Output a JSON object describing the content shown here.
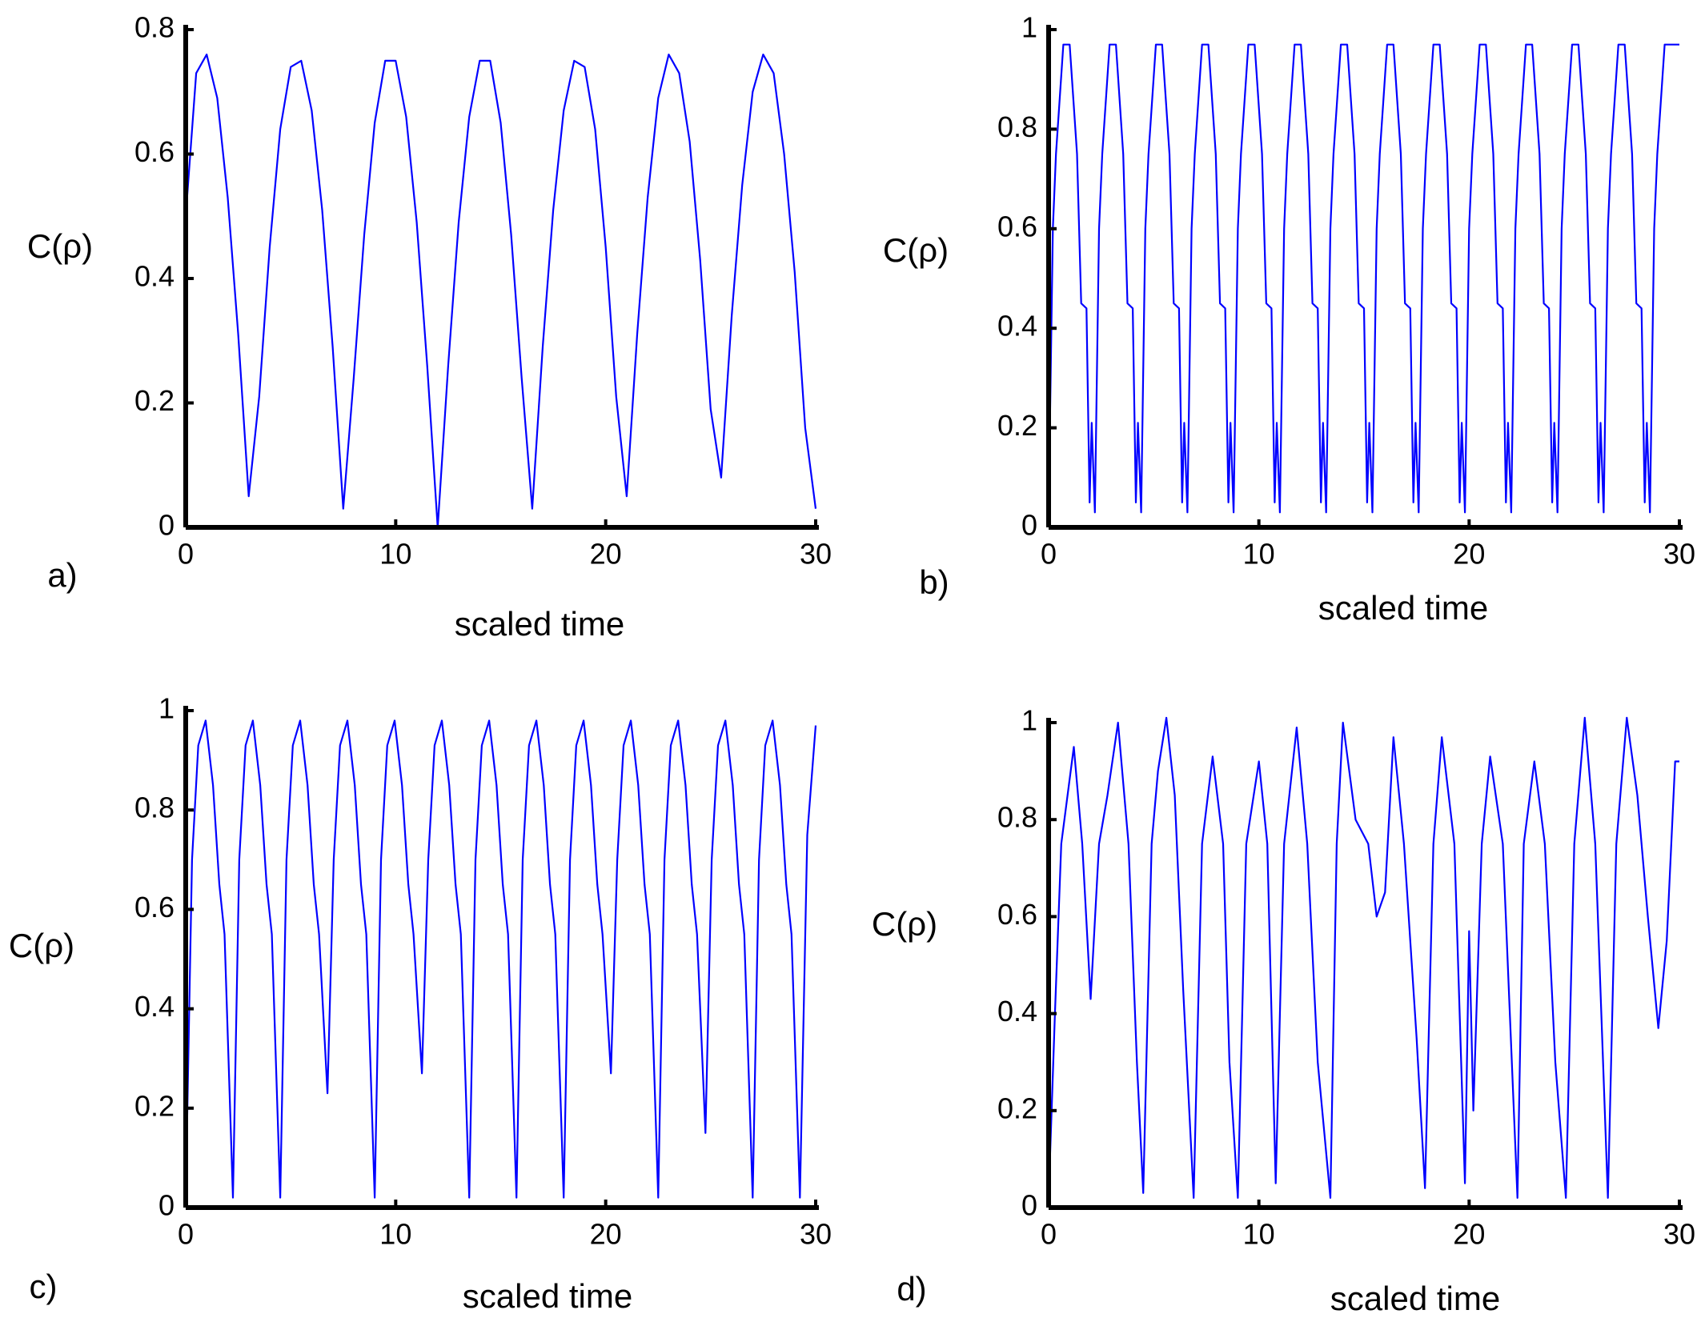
{
  "chart_data": [
    {
      "type": "line",
      "panel_label": "a)",
      "xlabel": "scaled time",
      "ylabel": "C(ρ)",
      "color": "#0000ff",
      "xlim": [
        0,
        30
      ],
      "xticks": [
        0,
        10,
        20,
        30
      ],
      "ylim": [
        0,
        0.8
      ],
      "yticks": [
        0,
        0.2,
        0.4,
        0.6,
        0.8
      ],
      "x": [
        0,
        0.5,
        1,
        1.5,
        2,
        2.5,
        3,
        3.5,
        4,
        4.5,
        5,
        5.5,
        6,
        6.5,
        7,
        7.5,
        8,
        8.5,
        9,
        9.5,
        10,
        10.5,
        11,
        11.5,
        12,
        12.5,
        13,
        13.5,
        14,
        14.5,
        15,
        15.5,
        16,
        16.5,
        17,
        17.5,
        18,
        18.5,
        19,
        19.5,
        20,
        20.5,
        21,
        21.5,
        22,
        22.5,
        23,
        23.5,
        24,
        24.5,
        25,
        25.5,
        26,
        26.5,
        27,
        27.5,
        28,
        28.5,
        29,
        29.5,
        30
      ],
      "values": [
        0.5,
        0.73,
        0.76,
        0.69,
        0.53,
        0.31,
        0.05,
        0.21,
        0.45,
        0.64,
        0.74,
        0.75,
        0.67,
        0.51,
        0.29,
        0.03,
        0.24,
        0.47,
        0.65,
        0.75,
        0.75,
        0.66,
        0.49,
        0.26,
        0,
        0.26,
        0.49,
        0.66,
        0.75,
        0.75,
        0.65,
        0.47,
        0.24,
        0.03,
        0.29,
        0.51,
        0.67,
        0.75,
        0.74,
        0.64,
        0.45,
        0.21,
        0.05,
        0.31,
        0.53,
        0.69,
        0.76,
        0.73,
        0.62,
        0.43,
        0.19,
        0.08,
        0.34,
        0.55,
        0.7,
        0.76,
        0.73,
        0.6,
        0.41,
        0.16,
        0.03
      ]
    },
    {
      "type": "line",
      "panel_label": "b)",
      "xlabel": "scaled time",
      "ylabel": "C(ρ)",
      "color": "#0000ff",
      "xlim": [
        0,
        30
      ],
      "xticks": [
        0,
        10,
        20,
        30
      ],
      "ylim": [
        0,
        1
      ],
      "yticks": [
        0,
        0.2,
        0.4,
        0.6,
        0.8,
        1
      ],
      "x": [
        0,
        0.2,
        0.35,
        0.7,
        1.0,
        1.35,
        1.55,
        1.8,
        1.95,
        2.05,
        2.2,
        2.4,
        2.55,
        2.9,
        3.2,
        3.55,
        3.75,
        4.0,
        4.15,
        4.25,
        4.4,
        4.6,
        4.75,
        5.1,
        5.4,
        5.75,
        5.95,
        6.2,
        6.35,
        6.45,
        6.6,
        6.8,
        6.95,
        7.3,
        7.6,
        7.95,
        8.15,
        8.4,
        8.55,
        8.65,
        8.8,
        9.0,
        9.15,
        9.5,
        9.8,
        10.15,
        10.35,
        10.6,
        10.75,
        10.85,
        11.0,
        11.2,
        11.35,
        11.7,
        12.0,
        12.35,
        12.55,
        12.8,
        12.95,
        13.05,
        13.2,
        13.4,
        13.55,
        13.9,
        14.2,
        14.55,
        14.75,
        15.0,
        15.15,
        15.25,
        15.4,
        15.6,
        15.75,
        16.1,
        16.4,
        16.75,
        16.95,
        17.2,
        17.35,
        17.45,
        17.6,
        17.8,
        17.95,
        18.3,
        18.6,
        18.95,
        19.15,
        19.4,
        19.55,
        19.65,
        19.8,
        20.0,
        20.15,
        20.5,
        20.8,
        21.15,
        21.35,
        21.6,
        21.75,
        21.85,
        22.0,
        22.2,
        22.35,
        22.7,
        23.0,
        23.35,
        23.55,
        23.8,
        23.95,
        24.05,
        24.2,
        24.4,
        24.55,
        24.9,
        25.2,
        25.55,
        25.75,
        26.0,
        26.15,
        26.25,
        26.4,
        26.6,
        26.75,
        27.1,
        27.4,
        27.75,
        27.95,
        28.2,
        28.35,
        28.45,
        28.6,
        28.8,
        28.95,
        29.3,
        30.0
      ],
      "values": [
        0.03,
        0.6,
        0.75,
        0.97,
        0.97,
        0.75,
        0.45,
        0.44,
        0.05,
        0.21,
        0.03,
        0.6,
        0.75,
        0.97,
        0.97,
        0.75,
        0.45,
        0.44,
        0.05,
        0.21,
        0.03,
        0.6,
        0.75,
        0.97,
        0.97,
        0.75,
        0.45,
        0.44,
        0.05,
        0.21,
        0.03,
        0.6,
        0.75,
        0.97,
        0.97,
        0.75,
        0.45,
        0.44,
        0.05,
        0.21,
        0.03,
        0.6,
        0.75,
        0.97,
        0.97,
        0.75,
        0.45,
        0.44,
        0.05,
        0.21,
        0.03,
        0.6,
        0.75,
        0.97,
        0.97,
        0.75,
        0.45,
        0.44,
        0.05,
        0.21,
        0.03,
        0.6,
        0.75,
        0.97,
        0.97,
        0.75,
        0.45,
        0.44,
        0.05,
        0.21,
        0.03,
        0.6,
        0.75,
        0.97,
        0.97,
        0.75,
        0.45,
        0.44,
        0.05,
        0.21,
        0.03,
        0.6,
        0.75,
        0.97,
        0.97,
        0.75,
        0.45,
        0.44,
        0.05,
        0.21,
        0.03,
        0.6,
        0.75,
        0.97,
        0.97,
        0.75,
        0.45,
        0.44,
        0.05,
        0.21,
        0.03,
        0.6,
        0.75,
        0.97,
        0.97,
        0.75,
        0.45,
        0.44,
        0.05,
        0.21,
        0.03,
        0.6,
        0.75,
        0.97,
        0.97,
        0.75,
        0.45,
        0.44,
        0.05,
        0.21,
        0.03,
        0.6,
        0.75,
        0.97,
        0.97,
        0.75,
        0.45,
        0.44,
        0.05,
        0.21,
        0.03,
        0.6,
        0.75,
        0.97,
        0.97
      ]
    },
    {
      "type": "line",
      "panel_label": "c)",
      "xlabel": "scaled time",
      "ylabel": "C(ρ)",
      "color": "#0000ff",
      "xlim": [
        0,
        30
      ],
      "xticks": [
        0,
        10,
        20,
        30
      ],
      "ylim": [
        0,
        1
      ],
      "yticks": [
        0,
        0.2,
        0.4,
        0.6,
        0.8,
        1
      ],
      "x": [
        0,
        0.3,
        0.6,
        0.95,
        1.3,
        1.6,
        1.85,
        2.25,
        2.55,
        2.85,
        3.2,
        3.55,
        3.85,
        4.1,
        4.5,
        4.8,
        5.1,
        5.45,
        5.8,
        6.1,
        6.35,
        6.75,
        7.05,
        7.35,
        7.7,
        8.05,
        8.35,
        8.6,
        9,
        9.3,
        9.6,
        9.95,
        10.3,
        10.6,
        10.85,
        11.25,
        11.55,
        11.85,
        12.2,
        12.55,
        12.85,
        13.1,
        13.5,
        13.8,
        14.1,
        14.45,
        14.8,
        15.1,
        15.35,
        15.75,
        16.05,
        16.35,
        16.7,
        17.05,
        17.35,
        17.6,
        18,
        18.3,
        18.6,
        18.95,
        19.3,
        19.6,
        19.85,
        20.25,
        20.55,
        20.85,
        21.2,
        21.55,
        21.85,
        22.1,
        22.5,
        22.8,
        23.1,
        23.45,
        23.8,
        24.1,
        24.35,
        24.75,
        25.05,
        25.35,
        25.7,
        26.05,
        26.35,
        26.6,
        27,
        27.3,
        27.6,
        27.95,
        28.3,
        28.6,
        28.85,
        29.25,
        29.6,
        30
      ],
      "values": [
        0.02,
        0.7,
        0.93,
        0.98,
        0.85,
        0.65,
        0.55,
        0.02,
        0.7,
        0.93,
        0.98,
        0.85,
        0.65,
        0.55,
        0.02,
        0.7,
        0.93,
        0.98,
        0.85,
        0.65,
        0.55,
        0.23,
        0.7,
        0.93,
        0.98,
        0.85,
        0.65,
        0.55,
        0.02,
        0.7,
        0.93,
        0.98,
        0.85,
        0.65,
        0.55,
        0.27,
        0.7,
        0.93,
        0.98,
        0.85,
        0.65,
        0.55,
        0.02,
        0.7,
        0.93,
        0.98,
        0.85,
        0.65,
        0.55,
        0.02,
        0.7,
        0.93,
        0.98,
        0.85,
        0.65,
        0.55,
        0.02,
        0.7,
        0.93,
        0.98,
        0.85,
        0.65,
        0.55,
        0.27,
        0.7,
        0.93,
        0.98,
        0.85,
        0.65,
        0.55,
        0.02,
        0.7,
        0.93,
        0.98,
        0.85,
        0.65,
        0.55,
        0.15,
        0.7,
        0.93,
        0.98,
        0.85,
        0.65,
        0.55,
        0.02,
        0.7,
        0.93,
        0.98,
        0.85,
        0.65,
        0.55,
        0.02,
        0.75,
        0.97
      ]
    },
    {
      "type": "line",
      "panel_label": "d)",
      "xlabel": "scaled time",
      "ylabel": "C(ρ)",
      "color": "#0000ff",
      "xlim": [
        0,
        30
      ],
      "xticks": [
        0,
        10,
        20,
        30
      ],
      "ylim": [
        0,
        1
      ],
      "yticks": [
        0,
        0.2,
        0.4,
        0.6,
        0.8,
        1
      ],
      "x": [
        0,
        0.3,
        0.6,
        1.2,
        1.6,
        2.0,
        2.4,
        2.8,
        3.3,
        3.8,
        4.2,
        4.5,
        4.9,
        5.2,
        5.6,
        6.0,
        6.4,
        6.9,
        7.3,
        7.8,
        8.3,
        8.6,
        9.0,
        9.4,
        10.0,
        10.4,
        10.8,
        11.2,
        11.8,
        12.3,
        12.8,
        13.4,
        13.7,
        14.0,
        14.6,
        15.2,
        15.6,
        16.0,
        16.4,
        16.9,
        17.5,
        17.9,
        18.3,
        18.7,
        19.3,
        19.8,
        20.0,
        20.2,
        20.6,
        21.0,
        21.6,
        22.3,
        22.6,
        23.1,
        23.6,
        24.1,
        24.6,
        25.0,
        25.5,
        26.0,
        26.6,
        27.0,
        27.5,
        28.0,
        28.5,
        29.0,
        29.4,
        29.8,
        30
      ],
      "values": [
        0.02,
        0.4,
        0.75,
        0.95,
        0.75,
        0.43,
        0.75,
        0.85,
        1.0,
        0.75,
        0.3,
        0.03,
        0.75,
        0.9,
        1.01,
        0.85,
        0.45,
        0.02,
        0.75,
        0.93,
        0.75,
        0.3,
        0.02,
        0.75,
        0.92,
        0.75,
        0.05,
        0.75,
        0.99,
        0.75,
        0.3,
        0.02,
        0.75,
        1.0,
        0.8,
        0.75,
        0.6,
        0.65,
        0.97,
        0.75,
        0.35,
        0.04,
        0.75,
        0.97,
        0.75,
        0.05,
        0.57,
        0.2,
        0.75,
        0.93,
        0.75,
        0.02,
        0.75,
        0.92,
        0.75,
        0.3,
        0.02,
        0.75,
        1.01,
        0.75,
        0.02,
        0.75,
        1.01,
        0.85,
        0.6,
        0.37,
        0.55,
        0.92,
        0.92
      ]
    }
  ]
}
